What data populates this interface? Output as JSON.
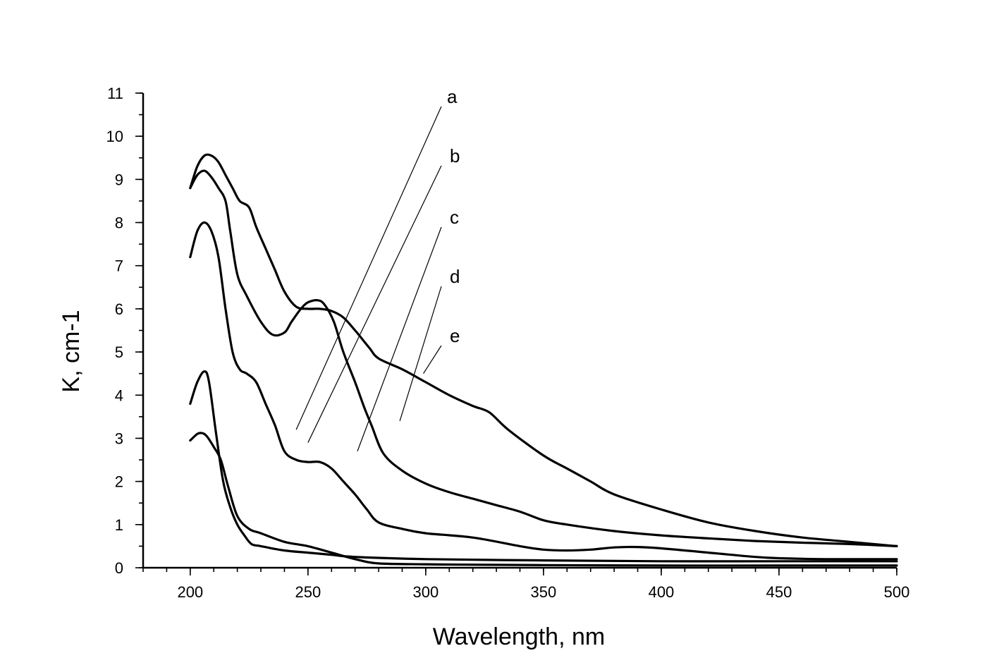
{
  "chart_data": {
    "type": "line",
    "title": "",
    "xlabel": "Wavelength, nm",
    "ylabel": "K, cm-1",
    "xlim": [
      180,
      500
    ],
    "ylim": [
      0,
      11
    ],
    "x_major_ticks": [
      200,
      250,
      300,
      350,
      400,
      450,
      500
    ],
    "x_tick_labels": [
      "200",
      "250",
      "300",
      "350",
      "400",
      "450",
      "500"
    ],
    "x_minor_step": 10,
    "y_major_ticks": [
      0,
      1,
      2,
      3,
      4,
      5,
      6,
      7,
      8,
      9,
      10,
      11
    ],
    "y_tick_labels": [
      "0",
      "1",
      "2",
      "3",
      "4",
      "5",
      "6",
      "7",
      "8",
      "9",
      "10",
      "11"
    ],
    "y_minor_step": 0.5,
    "grid": false,
    "legend": "curve labels a–e with leader lines",
    "series": [
      {
        "name": "a",
        "label_anchor": [
          245,
          3.2
        ],
        "x": [
          200,
          203,
          205,
          207,
          210,
          213,
          216,
          220,
          225,
          230,
          240,
          250,
          260,
          270,
          280,
          300,
          320,
          350,
          400,
          450,
          500
        ],
        "y": [
          2.95,
          3.1,
          3.12,
          3.05,
          2.8,
          2.5,
          1.9,
          1.2,
          0.9,
          0.8,
          0.6,
          0.5,
          0.35,
          0.2,
          0.1,
          0.08,
          0.07,
          0.06,
          0.05,
          0.05,
          0.05
        ]
      },
      {
        "name": "b",
        "label_anchor": [
          250,
          2.9
        ],
        "x": [
          200,
          203,
          206,
          208,
          211,
          214,
          217,
          220,
          223,
          226,
          230,
          240,
          250,
          260,
          270,
          300,
          350,
          400,
          450,
          500
        ],
        "y": [
          3.8,
          4.3,
          4.55,
          4.3,
          3.1,
          2.0,
          1.4,
          1.0,
          0.75,
          0.55,
          0.5,
          0.4,
          0.35,
          0.3,
          0.25,
          0.2,
          0.17,
          0.15,
          0.15,
          0.15
        ]
      },
      {
        "name": "c",
        "label_anchor": [
          271,
          2.7
        ],
        "x": [
          200,
          203,
          206,
          209,
          212,
          215,
          218,
          221,
          224,
          228,
          232,
          236,
          240,
          245,
          250,
          255,
          260,
          265,
          270,
          275,
          280,
          290,
          300,
          320,
          340,
          350,
          360,
          370,
          380,
          390,
          400,
          420,
          440,
          450,
          470,
          500
        ],
        "y": [
          7.2,
          7.8,
          8.0,
          7.8,
          7.2,
          6.0,
          5.0,
          4.6,
          4.5,
          4.3,
          3.8,
          3.3,
          2.7,
          2.5,
          2.45,
          2.45,
          2.3,
          2.0,
          1.7,
          1.35,
          1.05,
          0.9,
          0.8,
          0.7,
          0.5,
          0.42,
          0.4,
          0.42,
          0.47,
          0.48,
          0.45,
          0.35,
          0.25,
          0.22,
          0.2,
          0.2
        ]
      },
      {
        "name": "d",
        "label_anchor": [
          289,
          3.4
        ],
        "x": [
          200,
          203,
          206,
          209,
          212,
          215,
          217,
          220,
          224,
          230,
          235,
          240,
          243,
          247,
          250,
          254,
          257,
          261,
          265,
          270,
          274,
          277,
          282,
          290,
          300,
          310,
          320,
          330,
          340,
          350,
          360,
          380,
          400,
          420,
          440,
          460,
          480,
          500
        ],
        "y": [
          8.8,
          9.1,
          9.2,
          9.05,
          8.8,
          8.5,
          7.8,
          6.8,
          6.3,
          5.7,
          5.4,
          5.45,
          5.7,
          6.0,
          6.15,
          6.2,
          6.1,
          5.7,
          5.0,
          4.3,
          3.7,
          3.3,
          2.65,
          2.25,
          1.95,
          1.75,
          1.6,
          1.45,
          1.3,
          1.1,
          1.0,
          0.85,
          0.75,
          0.68,
          0.62,
          0.58,
          0.55,
          0.5
        ]
      },
      {
        "name": "e",
        "label_anchor": [
          299,
          4.5
        ],
        "x": [
          200,
          203,
          206,
          209,
          212,
          215,
          218,
          221,
          225,
          228,
          232,
          236,
          240,
          245,
          250,
          255,
          260,
          265,
          270,
          276,
          280,
          290,
          300,
          310,
          320,
          327,
          335,
          350,
          360,
          370,
          380,
          400,
          420,
          440,
          460,
          480,
          500
        ],
        "y": [
          8.8,
          9.3,
          9.55,
          9.55,
          9.4,
          9.1,
          8.8,
          8.5,
          8.35,
          7.9,
          7.4,
          6.9,
          6.4,
          6.05,
          6.0,
          6.0,
          5.95,
          5.8,
          5.5,
          5.1,
          4.85,
          4.6,
          4.3,
          4.0,
          3.75,
          3.6,
          3.2,
          2.6,
          2.3,
          2.0,
          1.7,
          1.35,
          1.05,
          0.85,
          0.7,
          0.6,
          0.5
        ]
      }
    ]
  }
}
